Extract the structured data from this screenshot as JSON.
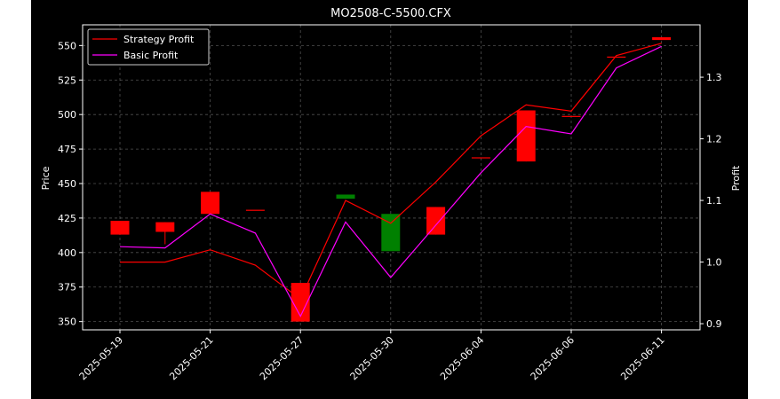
{
  "chart_data": {
    "type": "candlestick+line",
    "title": "MO2508-C-5500.CFX",
    "ylabel_left": "Price",
    "ylabel_right": "Profit",
    "xlabel": "",
    "x_tick_labels": [
      "2025-05-19",
      "2025-05-21",
      "2025-05-27",
      "2025-05-30",
      "2025-06-04",
      "2025-06-06",
      "2025-06-11"
    ],
    "x_tick_indices": [
      0,
      2,
      4,
      6,
      8,
      10,
      12
    ],
    "ylim_left": [
      344,
      565
    ],
    "yticks_left": [
      350,
      375,
      400,
      425,
      450,
      475,
      500,
      525,
      550
    ],
    "ylim_right": [
      0.89,
      1.385
    ],
    "yticks_right": [
      0.9,
      1.0,
      1.1,
      1.2,
      1.3
    ],
    "grid": true,
    "legend_position": "top-left",
    "candles": [
      {
        "open": 423,
        "high": 423,
        "low": 413,
        "close": 413,
        "color": "red"
      },
      {
        "open": 422,
        "high": 422,
        "low": 406,
        "close": 415,
        "color": "red"
      },
      {
        "open": 444,
        "high": 444,
        "low": 428,
        "close": 428,
        "color": "red"
      },
      {
        "open": 431,
        "high": 431,
        "low": 431,
        "close": 431,
        "color": "red"
      },
      {
        "open": 378,
        "high": 378,
        "low": 350,
        "close": 350,
        "color": "red"
      },
      {
        "open": 439,
        "high": 442,
        "low": 439,
        "close": 442,
        "color": "green"
      },
      {
        "open": 401,
        "high": 428,
        "low": 401,
        "close": 428,
        "color": "green"
      },
      {
        "open": 433,
        "high": 433,
        "low": 413,
        "close": 413,
        "color": "red"
      },
      {
        "open": 469,
        "high": 469,
        "low": 469,
        "close": 469,
        "color": "red"
      },
      {
        "open": 503,
        "high": 503,
        "low": 466,
        "close": 466,
        "color": "red"
      },
      {
        "open": 499,
        "high": 499,
        "low": 499,
        "close": 499,
        "color": "red"
      },
      {
        "open": 542,
        "high": 542,
        "low": 542,
        "close": 542,
        "color": "red"
      },
      {
        "open": 556,
        "high": 556,
        "low": 554,
        "close": 554,
        "color": "red"
      }
    ],
    "series": [
      {
        "name": "Strategy Profit",
        "color": "#ff0000",
        "axis": "right",
        "values": [
          1.0,
          1.0,
          1.02,
          0.995,
          0.94,
          1.1,
          1.063,
          1.13,
          1.205,
          1.255,
          1.245,
          1.335,
          1.355
        ]
      },
      {
        "name": "Basic Profit",
        "color": "#ff00ff",
        "axis": "right",
        "values": [
          1.025,
          1.023,
          1.078,
          1.047,
          0.912,
          1.065,
          0.975,
          1.06,
          1.145,
          1.22,
          1.208,
          1.315,
          1.35
        ]
      }
    ]
  }
}
